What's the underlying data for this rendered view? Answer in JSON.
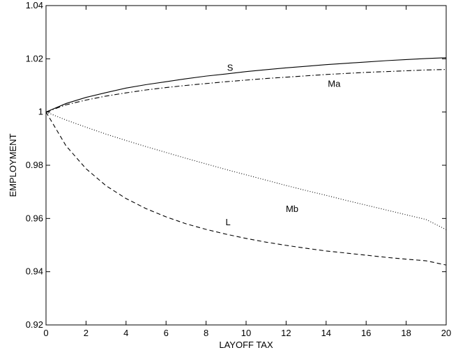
{
  "chart_data": {
    "type": "line",
    "xlabel": "LAYOFF TAX",
    "ylabel": "EMPLOYMENT",
    "xlim": [
      0,
      20
    ],
    "ylim": [
      0.92,
      1.04
    ],
    "x_ticks": [
      0,
      2,
      4,
      6,
      8,
      10,
      12,
      14,
      16,
      18,
      20
    ],
    "x_tick_labels": [
      "0",
      "2",
      "4",
      "6",
      "8",
      "10",
      "12",
      "14",
      "16",
      "18",
      "20"
    ],
    "y_ticks": [
      0.92,
      0.94,
      0.96,
      0.98,
      1.0,
      1.02,
      1.04
    ],
    "y_tick_labels": [
      "0.92",
      "0.94",
      "0.96",
      "0.98",
      "1",
      "1.02",
      "1.04"
    ],
    "grid": false,
    "x": [
      0,
      1,
      2,
      3,
      4,
      5,
      6,
      7,
      8,
      9,
      10,
      11,
      12,
      13,
      14,
      15,
      16,
      17,
      18,
      19,
      20
    ],
    "series": [
      {
        "name": "S",
        "style": "solid",
        "label_x": 9.2,
        "label_y": 1.0155,
        "values": [
          1.0,
          1.0032,
          1.0055,
          1.0073,
          1.009,
          1.0103,
          1.0114,
          1.0125,
          1.0135,
          1.0143,
          1.0152,
          1.0159,
          1.0166,
          1.0172,
          1.0178,
          1.0183,
          1.0188,
          1.0193,
          1.0197,
          1.0201,
          1.0204
        ]
      },
      {
        "name": "Ma",
        "style": "dashdot",
        "label_x": 14.4,
        "label_y": 1.0095,
        "values": [
          1.0,
          1.0027,
          1.0045,
          1.006,
          1.0072,
          1.0083,
          1.0092,
          1.01,
          1.0107,
          1.0114,
          1.012,
          1.0126,
          1.0131,
          1.0136,
          1.0141,
          1.0145,
          1.0149,
          1.0152,
          1.0155,
          1.0158,
          1.016
        ]
      },
      {
        "name": "Mb",
        "style": "dotted",
        "label_x": 12.3,
        "label_y": 0.9625,
        "values": [
          1.0,
          0.997,
          0.9943,
          0.9917,
          0.9893,
          0.987,
          0.9848,
          0.9826,
          0.9805,
          0.9784,
          0.9764,
          0.9744,
          0.9724,
          0.9705,
          0.9687,
          0.9668,
          0.965,
          0.9632,
          0.9614,
          0.9596,
          0.9558
        ]
      },
      {
        "name": "L",
        "style": "dashed",
        "label_x": 9.1,
        "label_y": 0.9575,
        "values": [
          1.0,
          0.9873,
          0.9787,
          0.9723,
          0.9675,
          0.9637,
          0.9606,
          0.958,
          0.9559,
          0.9541,
          0.9525,
          0.9511,
          0.9499,
          0.9488,
          0.9478,
          0.947,
          0.9462,
          0.9454,
          0.9447,
          0.9441,
          0.9425
        ]
      }
    ]
  }
}
